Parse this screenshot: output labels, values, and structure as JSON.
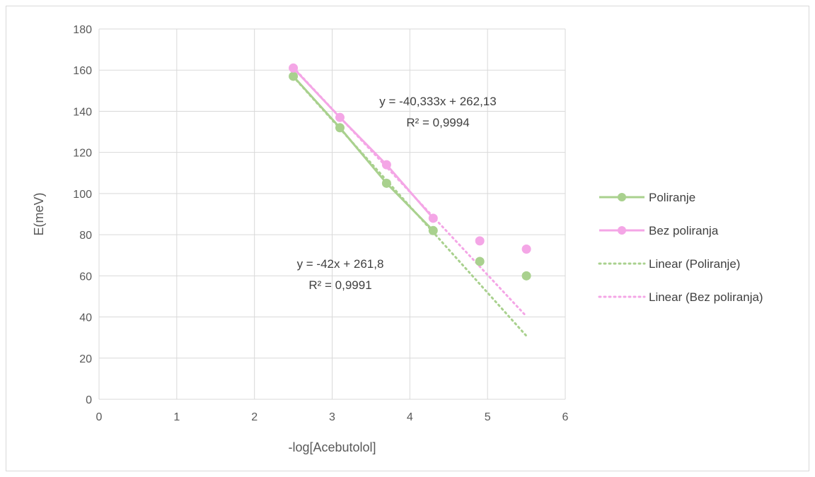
{
  "chart_data": {
    "type": "scatter",
    "title": "",
    "xlabel": "-log[Acebutolol]",
    "ylabel": "E(meV)",
    "xlim": [
      0,
      6
    ],
    "ylim": [
      0,
      180
    ],
    "xticks": [
      0,
      1,
      2,
      3,
      4,
      5,
      6
    ],
    "yticks": [
      0,
      20,
      40,
      60,
      80,
      100,
      120,
      140,
      160,
      180
    ],
    "grid": true,
    "legend_position": "right",
    "series": [
      {
        "name": "Poliranje",
        "color": "#a9d18e",
        "x": [
          2.5,
          3.1,
          3.7,
          4.3,
          4.9,
          5.5
        ],
        "y": [
          157,
          132,
          105,
          82,
          67,
          60
        ],
        "line_points": 4
      },
      {
        "name": "Bez poliranja",
        "color": "#f4a6e6",
        "x": [
          2.5,
          3.1,
          3.7,
          4.3,
          4.9,
          5.5
        ],
        "y": [
          161,
          137,
          114,
          88,
          77,
          73
        ],
        "line_points": 4
      }
    ],
    "trendlines": [
      {
        "name": "Linear (Poliranje)",
        "color": "#a9d18e",
        "slope": -42,
        "intercept": 261.8,
        "x_range": [
          2.5,
          5.5
        ],
        "equation": "y = -42x + 261,8",
        "r2": "R² = 0,9991"
      },
      {
        "name": "Linear (Bez poliranja)",
        "color": "#f4a6e6",
        "slope": -40.333,
        "intercept": 262.13,
        "x_range": [
          2.5,
          5.5
        ],
        "equation": "y = -40,333x + 262,13",
        "r2": "R² = 0,9994"
      }
    ]
  },
  "legend": {
    "items": [
      {
        "label": "Poliranje",
        "color": "#a9d18e",
        "style": "solid-marker"
      },
      {
        "label": "Bez poliranja",
        "color": "#f4a6e6",
        "style": "solid-marker"
      },
      {
        "label": "Linear (Poliranje)",
        "color": "#a9d18e",
        "style": "dotted"
      },
      {
        "label": "Linear (Bez poliranja)",
        "color": "#f4a6e6",
        "style": "dotted"
      }
    ]
  }
}
